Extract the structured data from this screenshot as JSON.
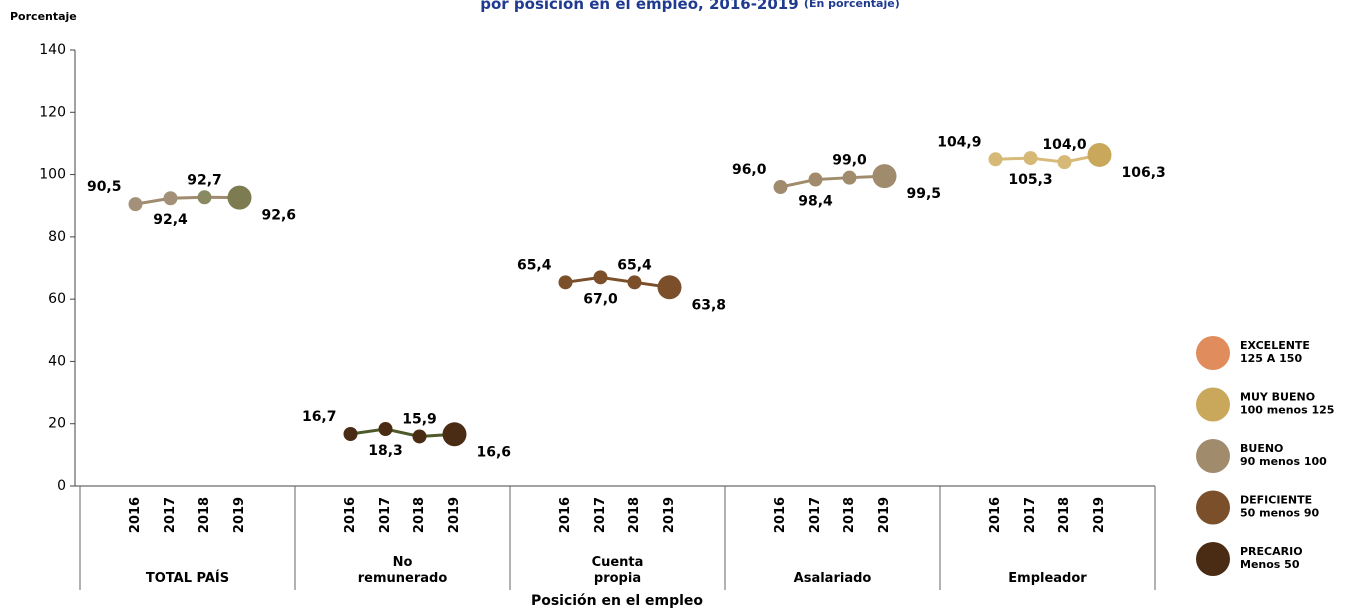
{
  "chart_data": {
    "type": "line",
    "title": "por posición en el empleo, 2016-2019",
    "subtitle": "(En porcentaje)",
    "y_label": "Porcentaje",
    "x_label": "Posición en el empleo",
    "categories": [
      "2016",
      "2017",
      "2018",
      "2019"
    ],
    "ylim": [
      0,
      140
    ],
    "yticks": [
      0,
      20,
      40,
      60,
      80,
      100,
      120,
      140
    ],
    "series": [
      {
        "name": "TOTAL PAÍS",
        "color": "#a08a70",
        "values": [
          90.5,
          92.4,
          92.7,
          92.6
        ],
        "value_labels": [
          "90,5",
          "92,4",
          "92,7",
          "92,6"
        ],
        "point_colors": [
          "#a39078",
          "#a39078",
          "#8a8a62",
          "#7d7b50"
        ]
      },
      {
        "name": "No\nremunerado",
        "color": "#4e5a2a",
        "values": [
          16.7,
          18.3,
          15.9,
          16.6
        ],
        "value_labels": [
          "16,7",
          "18,3",
          "15,9",
          "16,6"
        ],
        "point_colors": [
          "#4a2c14",
          "#4a2c14",
          "#4a2c14",
          "#4a2c14"
        ]
      },
      {
        "name": "Cuenta\npropia",
        "color": "#7a4f2a",
        "values": [
          65.4,
          67.0,
          65.4,
          63.8
        ],
        "value_labels": [
          "65,4",
          "67,0",
          "65,4",
          "63,8"
        ],
        "point_colors": [
          "#7a4f2a",
          "#7a4f2a",
          "#7a4f2a",
          "#7a4f2a"
        ]
      },
      {
        "name": "Asalariado",
        "color": "#a08c6c",
        "values": [
          96.0,
          98.4,
          99.0,
          99.5
        ],
        "value_labels": [
          "96,0",
          "98,4",
          "99,0",
          "99,5"
        ],
        "point_colors": [
          "#a08c6c",
          "#a08c6c",
          "#a08c6c",
          "#a08c6c"
        ]
      },
      {
        "name": "Empleador",
        "color": "#d8bb7a",
        "values": [
          104.9,
          105.3,
          104.0,
          106.3
        ],
        "value_labels": [
          "104,9",
          "105,3",
          "104,0",
          "106,3"
        ],
        "point_colors": [
          "#d6b877",
          "#d6b877",
          "#d6b877",
          "#c9a85c"
        ]
      }
    ],
    "legend": [
      {
        "label": "EXCELENTE",
        "range": "125 A 150",
        "color": "#e08c5c"
      },
      {
        "label": "MUY BUENO",
        "range": "100 menos 125",
        "color": "#c9a85c"
      },
      {
        "label": "BUENO",
        "range": "90 menos 100",
        "color": "#a08c6c"
      },
      {
        "label": "DEFICIENTE",
        "range": "50 menos 90",
        "color": "#7a4f2a"
      },
      {
        "label": "PRECARIO",
        "range": "Menos 50",
        "color": "#4a2c14"
      }
    ]
  }
}
